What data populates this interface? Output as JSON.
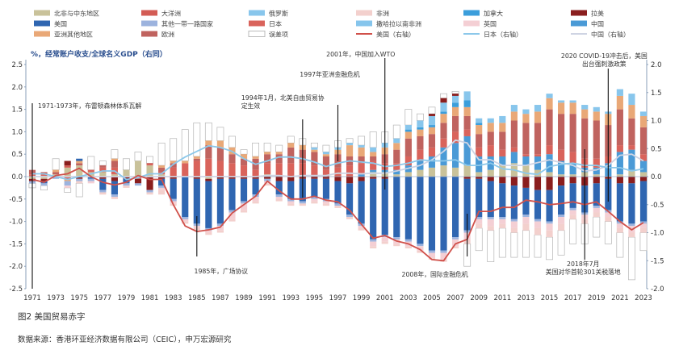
{
  "caption": {
    "title": "图2 美国贸易赤字",
    "source": "数据来源：香港环亚经济数据有限公司（CEIC），申万宏源研究"
  },
  "chart_data": {
    "type": "bar",
    "stacked": true,
    "subtitle": "%，经常账户收支/全球名义GDP（右同）",
    "ylim_left": [
      -2.5,
      2.5
    ],
    "ylim_right": [
      -2.0,
      2.0
    ],
    "yticks_left": [
      "2.5",
      "2.0",
      "1.5",
      "1.0",
      "0.5",
      "0.0",
      "-0.5",
      "-1.0",
      "-1.5",
      "-2.0",
      "-2.5"
    ],
    "yticks_right": [
      "2.0",
      "1.5",
      "1.0",
      "0.5",
      "0.0",
      "-0.5",
      "-1.0",
      "-1.5",
      "-2.0"
    ],
    "categories": [
      1971,
      1972,
      1973,
      1974,
      1975,
      1976,
      1977,
      1978,
      1979,
      1980,
      1981,
      1982,
      1983,
      1984,
      1985,
      1986,
      1987,
      1988,
      1989,
      1990,
      1991,
      1992,
      1993,
      1994,
      1995,
      1996,
      1997,
      1998,
      1999,
      2000,
      2001,
      2002,
      2003,
      2004,
      2005,
      2006,
      2007,
      2008,
      2009,
      2010,
      2011,
      2012,
      2013,
      2014,
      2015,
      2016,
      2017,
      2018,
      2019,
      2020,
      2021,
      2022,
      2023
    ],
    "xtick_labels": [
      "1971",
      "1973",
      "1975",
      "1977",
      "1979",
      "1981",
      "1983",
      "1985",
      "1987",
      "1989",
      "1991",
      "1993",
      "1995",
      "1997",
      "1999",
      "2001",
      "2003",
      "2005",
      "2007",
      "2009",
      "2011",
      "2013",
      "2015",
      "2017",
      "2019",
      "2021",
      "2023"
    ],
    "legend": [
      {
        "name": "北非与中东地区",
        "color": "#c9c29a",
        "kind": "bar"
      },
      {
        "name": "大洋洲",
        "color": "#d35c55",
        "kind": "bar"
      },
      {
        "name": "俄罗斯",
        "color": "#88c6ec",
        "kind": "bar"
      },
      {
        "name": "非洲",
        "color": "#f3d0cd",
        "kind": "bar"
      },
      {
        "name": "加拿大",
        "color": "#3b9edb",
        "kind": "bar"
      },
      {
        "name": "拉美",
        "color": "#8a1e1e",
        "kind": "bar"
      },
      {
        "name": "美国",
        "color": "#2f66b1",
        "kind": "bar"
      },
      {
        "name": "其他一带一路国家",
        "color": "#9cb3de",
        "kind": "bar"
      },
      {
        "name": "日本",
        "color": "#d9635b",
        "kind": "bar"
      },
      {
        "name": "撒哈拉以南非洲",
        "color": "#86c5ec",
        "kind": "bar"
      },
      {
        "name": "英国",
        "color": "#f4cfd4",
        "kind": "bar"
      },
      {
        "name": "中国",
        "color": "#4a9ad6",
        "kind": "bar"
      },
      {
        "name": "亚洲其他地区",
        "color": "#e9a877",
        "kind": "bar"
      },
      {
        "name": "欧洲",
        "color": "#c0635f",
        "kind": "bar"
      },
      {
        "name": "误差项",
        "color": "#ffffff",
        "kind": "outline"
      },
      {
        "name": "美国（右轴）",
        "color": "#d0504a",
        "kind": "line"
      },
      {
        "name": "日本（右轴）",
        "color": "#8cc8ea",
        "kind": "line"
      },
      {
        "name": "中国（右轴）",
        "color": "#cfd4e3",
        "kind": "line"
      }
    ],
    "series_bars": [
      {
        "name": "北非与中东地区",
        "values": [
          -0.05,
          -0.05,
          0.05,
          0.2,
          0.25,
          0.1,
          0.1,
          0.05,
          0.15,
          0.35,
          0.25,
          0.05,
          0,
          0,
          0,
          -0.05,
          0,
          0,
          0,
          0,
          0.05,
          0,
          0,
          0,
          0,
          0,
          0,
          0,
          0,
          0.1,
          0.1,
          0.05,
          0.1,
          0.15,
          0.2,
          0.25,
          0.2,
          0.25,
          0.1,
          0.15,
          0.25,
          0.3,
          0.25,
          0.15,
          0.1,
          0.05,
          0.05,
          0.1,
          0.05,
          0,
          0.05,
          0.15,
          0.1
        ]
      },
      {
        "name": "中国",
        "values": [
          0,
          0,
          0,
          0,
          0,
          0,
          0,
          0,
          0,
          0,
          0,
          0,
          0,
          0,
          0,
          0,
          0,
          0,
          0,
          0,
          0,
          0,
          0,
          0,
          0,
          0,
          0,
          0,
          0.05,
          0.05,
          0.05,
          0.1,
          0.15,
          0.2,
          0.25,
          0.4,
          0.55,
          0.65,
          0.35,
          0.3,
          0.2,
          0.25,
          0.2,
          0.3,
          0.4,
          0.3,
          0.25,
          0.1,
          0.15,
          0.3,
          0.5,
          0.45,
          0.25
        ]
      },
      {
        "name": "日本",
        "values": [
          0.05,
          0.05,
          0,
          -0.05,
          0,
          0.05,
          0.1,
          0.15,
          0,
          -0.05,
          0.05,
          0.05,
          0.2,
          0.3,
          0.35,
          0.4,
          0.35,
          0.3,
          0.25,
          0.15,
          0.25,
          0.3,
          0.3,
          0.3,
          0.25,
          0.15,
          0.2,
          0.25,
          0.25,
          0.2,
          0.15,
          0.15,
          0.2,
          0.25,
          0.2,
          0.2,
          0.25,
          0.15,
          0.2,
          0.25,
          0.15,
          0.1,
          0.05,
          0.05,
          0.2,
          0.25,
          0.25,
          0.2,
          0.2,
          0.15,
          0.15,
          0.1,
          0.15
        ]
      },
      {
        "name": "欧洲",
        "values": [
          0.1,
          0.05,
          0.05,
          0,
          0.05,
          0,
          0.05,
          0.15,
          0,
          0,
          0,
          0.1,
          0.1,
          0,
          0.05,
          0.3,
          0.3,
          0.2,
          0.15,
          0.25,
          0.2,
          0.2,
          0.35,
          0.3,
          0.3,
          0.3,
          0.3,
          0.2,
          0.15,
          0.1,
          0.2,
          0.3,
          0.4,
          0.3,
          0.3,
          0.35,
          0.35,
          0.3,
          0.3,
          0.3,
          0.4,
          0.6,
          0.7,
          0.7,
          0.8,
          0.8,
          0.85,
          0.9,
          0.85,
          0.7,
          0.8,
          0.6,
          0.6
        ]
      },
      {
        "name": "亚洲其他地区",
        "values": [
          0,
          0,
          0.05,
          -0.05,
          0.05,
          0,
          0,
          0.05,
          0,
          0,
          0,
          0.05,
          0.05,
          0.05,
          0.05,
          0.1,
          0.15,
          0.15,
          0.1,
          0.05,
          0.05,
          0.05,
          0.1,
          0.1,
          0.05,
          0.05,
          0.1,
          0.25,
          0.2,
          0.1,
          0.15,
          0.15,
          0.15,
          0.15,
          0.15,
          0.2,
          0.2,
          0.2,
          0.2,
          0.2,
          0.2,
          0.2,
          0.2,
          0.25,
          0.25,
          0.25,
          0.25,
          0.2,
          0.2,
          0.25,
          0.3,
          0.3,
          0.25
        ]
      },
      {
        "name": "加拿大",
        "values": [
          0,
          0,
          0,
          0,
          0,
          0,
          0,
          0,
          0,
          0,
          0,
          0,
          0,
          0,
          0,
          0,
          0,
          0,
          0,
          0,
          0,
          0,
          0,
          0,
          0,
          0,
          0,
          0,
          0,
          0,
          0,
          0,
          0.05,
          0.05,
          0.05,
          0.05,
          0.1,
          0.15,
          0.05,
          0,
          0,
          0,
          0,
          0,
          0,
          0,
          0,
          0,
          0,
          0,
          0,
          0,
          0
        ]
      },
      {
        "name": "俄罗斯",
        "values": [
          0,
          0,
          0,
          0,
          0,
          0,
          0,
          0,
          0,
          0,
          0,
          0,
          0,
          0,
          0,
          0,
          0,
          0,
          0,
          0,
          0,
          0,
          0,
          0,
          0.05,
          0.05,
          0.05,
          0.05,
          0.05,
          0.1,
          0.1,
          0.1,
          0.1,
          0.15,
          0.2,
          0.2,
          0.15,
          0.2,
          0.1,
          0.1,
          0.15,
          0.15,
          0.1,
          0.15,
          0.1,
          0.05,
          0.05,
          0.1,
          0.1,
          0.05,
          0.15,
          0.25,
          0.1
        ]
      },
      {
        "name": "大洋洲",
        "values": [
          0,
          0,
          0,
          0.05,
          0,
          0,
          0,
          0,
          0,
          0,
          0,
          0,
          0,
          0,
          0,
          0,
          0,
          0,
          0,
          0,
          0,
          0,
          0,
          0,
          0,
          0,
          0,
          0,
          0,
          0,
          0,
          0,
          0,
          0,
          0,
          0,
          0,
          0,
          0,
          0,
          0,
          0,
          0,
          0,
          0,
          0,
          0,
          0,
          0,
          0,
          0,
          0,
          0
        ]
      },
      {
        "name": "拉美",
        "values": [
          -0.05,
          -0.05,
          0,
          0.1,
          -0.05,
          0,
          -0.05,
          -0.1,
          -0.05,
          -0.1,
          -0.3,
          -0.05,
          -0.05,
          0,
          -0.05,
          -0.05,
          -0.05,
          -0.05,
          -0.05,
          -0.05,
          -0.05,
          -0.1,
          -0.1,
          -0.05,
          -0.05,
          -0.05,
          -0.1,
          -0.15,
          -0.1,
          -0.05,
          -0.05,
          0,
          0,
          0,
          0.05,
          0.1,
          0.05,
          -0.05,
          -0.05,
          -0.1,
          -0.15,
          -0.2,
          -0.25,
          -0.3,
          -0.3,
          -0.2,
          -0.15,
          -0.2,
          -0.15,
          -0.05,
          -0.15,
          -0.15,
          -0.1
        ]
      },
      {
        "name": "美国",
        "values": [
          0,
          -0.05,
          0,
          0,
          0.05,
          -0.05,
          -0.25,
          -0.3,
          -0.1,
          0,
          0,
          -0.15,
          -0.45,
          -0.9,
          -1.0,
          -1.05,
          -1.0,
          -0.7,
          -0.5,
          -0.35,
          0,
          -0.3,
          -0.4,
          -0.5,
          -0.4,
          -0.45,
          -0.5,
          -0.7,
          -0.95,
          -1.35,
          -1.25,
          -1.35,
          -1.4,
          -1.5,
          -1.65,
          -1.65,
          -1.35,
          -1.15,
          -0.85,
          -0.8,
          -0.75,
          -0.75,
          -0.6,
          -0.65,
          -0.7,
          -0.65,
          -0.55,
          -0.6,
          -0.5,
          -0.7,
          -0.85,
          -0.9,
          -0.9
        ]
      },
      {
        "name": "其他一带一路国家",
        "values": [
          -0.05,
          -0.05,
          -0.05,
          -0.1,
          -0.05,
          -0.05,
          -0.05,
          -0.05,
          -0.05,
          -0.05,
          -0.05,
          -0.05,
          -0.05,
          -0.05,
          -0.05,
          -0.05,
          -0.05,
          -0.05,
          -0.05,
          -0.05,
          -0.05,
          -0.05,
          -0.05,
          -0.05,
          -0.05,
          -0.05,
          -0.05,
          -0.05,
          -0.05,
          -0.05,
          -0.05,
          -0.05,
          -0.05,
          -0.05,
          -0.05,
          -0.05,
          -0.05,
          -0.05,
          -0.05,
          -0.05,
          -0.05,
          -0.05,
          -0.05,
          -0.05,
          -0.05,
          -0.05,
          -0.05,
          -0.05,
          -0.05,
          -0.05,
          -0.05,
          -0.05,
          -0.05
        ]
      },
      {
        "name": "英国",
        "values": [
          0,
          0,
          0,
          -0.05,
          0,
          -0.05,
          0,
          0,
          0,
          0,
          0,
          -0.05,
          -0.05,
          -0.05,
          -0.05,
          -0.05,
          -0.1,
          -0.15,
          -0.15,
          -0.1,
          -0.05,
          -0.05,
          -0.05,
          0,
          -0.05,
          -0.05,
          0,
          0,
          -0.05,
          -0.1,
          -0.1,
          -0.1,
          -0.1,
          -0.1,
          -0.1,
          -0.15,
          -0.15,
          -0.15,
          -0.1,
          -0.15,
          -0.1,
          -0.15,
          -0.15,
          -0.15,
          -0.15,
          -0.15,
          -0.1,
          -0.1,
          -0.1,
          -0.1,
          -0.1,
          -0.15,
          -0.1
        ]
      },
      {
        "name": "非洲",
        "values": [
          0,
          0,
          0,
          0,
          -0.05,
          0,
          -0.05,
          -0.05,
          -0.05,
          0,
          -0.05,
          -0.1,
          -0.05,
          -0.05,
          -0.05,
          -0.05,
          -0.05,
          -0.05,
          -0.05,
          -0.05,
          -0.05,
          -0.05,
          -0.05,
          -0.05,
          -0.05,
          -0.05,
          -0.05,
          -0.05,
          -0.05,
          -0.05,
          -0.05,
          -0.05,
          -0.05,
          -0.05,
          -0.05,
          -0.05,
          -0.05,
          -0.1,
          -0.1,
          -0.1,
          -0.1,
          -0.1,
          -0.15,
          -0.15,
          -0.15,
          -0.15,
          -0.1,
          -0.1,
          -0.1,
          -0.1,
          -0.1,
          -0.1,
          -0.1
        ]
      },
      {
        "name": "撒哈拉以南非洲",
        "values": [
          0,
          0,
          0,
          0,
          0,
          0,
          0,
          0,
          0,
          0,
          0,
          0,
          0,
          0,
          0,
          0,
          0,
          0,
          0,
          0,
          0,
          0,
          0,
          0,
          0,
          0,
          0,
          0,
          0,
          0,
          0,
          0,
          0,
          0,
          0,
          0,
          0,
          0,
          0,
          0,
          0,
          0,
          0,
          0,
          0,
          0,
          0,
          0,
          0,
          0,
          0,
          0,
          0
        ]
      }
    ],
    "error_term": [
      -0.1,
      -0.1,
      0.25,
      -0.1,
      -0.3,
      0.3,
      0.1,
      0.2,
      0.25,
      0.2,
      0.15,
      0.5,
      0.5,
      0.7,
      0.75,
      0.4,
      0.3,
      0.25,
      0.1,
      0.3,
      0.2,
      0.15,
      0.15,
      0.15,
      0.1,
      0.15,
      0.15,
      0.1,
      0.2,
      0.35,
      0.25,
      0.3,
      0.35,
      0.15,
      0.15,
      0.1,
      0.05,
      -0.5,
      -0.5,
      -0.7,
      -0.65,
      -0.55,
      -0.6,
      -0.5,
      -0.5,
      -0.55,
      -0.55,
      -0.45,
      -0.45,
      -0.5,
      -0.55,
      -0.95,
      -0.4
    ],
    "series_lines": [
      {
        "name": "美国（右轴）",
        "axis": "right",
        "values": [
          -0.05,
          -0.1,
          0.02,
          0.05,
          0.15,
          0.0,
          -0.1,
          -0.15,
          -0.1,
          0.02,
          -0.05,
          -0.05,
          -0.5,
          -0.88,
          -0.98,
          -0.95,
          -0.9,
          -0.65,
          -0.5,
          -0.35,
          -0.08,
          -0.25,
          -0.4,
          -0.4,
          -0.35,
          -0.42,
          -0.45,
          -0.6,
          -0.85,
          -1.1,
          -1.05,
          -1.15,
          -1.2,
          -1.3,
          -1.48,
          -1.5,
          -1.2,
          -1.12,
          -0.62,
          -0.62,
          -0.55,
          -0.55,
          -0.42,
          -0.45,
          -0.5,
          -0.48,
          -0.45,
          -0.5,
          -0.45,
          -0.62,
          -0.8,
          -0.95,
          -0.82
        ]
      },
      {
        "name": "日本（右轴）",
        "axis": "right",
        "values": [
          0.05,
          0.05,
          0.0,
          -0.05,
          0.0,
          0.05,
          0.1,
          0.1,
          -0.05,
          -0.02,
          0.05,
          0.05,
          0.22,
          0.35,
          0.45,
          0.55,
          0.52,
          0.45,
          0.32,
          0.22,
          0.28,
          0.35,
          0.35,
          0.32,
          0.26,
          0.18,
          0.24,
          0.28,
          0.26,
          0.24,
          0.18,
          0.2,
          0.24,
          0.3,
          0.28,
          0.28,
          0.3,
          0.2,
          0.2,
          0.24,
          0.14,
          0.12,
          0.06,
          0.04,
          0.18,
          0.22,
          0.24,
          0.2,
          0.2,
          0.16,
          0.16,
          0.1,
          0.14
        ]
      },
      {
        "name": "中国（右轴）",
        "axis": "right",
        "values": [
          0,
          0,
          0,
          0,
          0,
          0,
          0,
          0,
          0,
          0,
          0,
          0,
          0,
          0,
          0,
          0,
          0,
          0,
          0,
          0,
          0.02,
          0.02,
          0,
          0.02,
          0.02,
          0.02,
          0.06,
          0.06,
          0.05,
          0.06,
          0.06,
          0.1,
          0.15,
          0.2,
          0.3,
          0.45,
          0.65,
          0.6,
          0.3,
          0.3,
          0.2,
          0.2,
          0.2,
          0.25,
          0.3,
          0.25,
          0.2,
          0.1,
          0.12,
          0.2,
          0.38,
          0.4,
          0.28
        ]
      }
    ],
    "annotations": [
      {
        "text": "1971-1973年，布雷顿森林体系瓦解",
        "year": 1971
      },
      {
        "text": "1985年，广场协议",
        "year": 1985
      },
      {
        "text": "1994年1月，北美自由贸易协",
        "text2": "定生效",
        "year": 1994
      },
      {
        "text": "1997年亚洲金融危机",
        "year": 1997
      },
      {
        "text": "2001年，中国加入WTO",
        "year": 2001
      },
      {
        "text": "2008年，国际金融危机",
        "year": 2008
      },
      {
        "text": "2018年7月",
        "text2": "美国对华首轮301关税落地",
        "year": 2018
      },
      {
        "text": "2020 COVID-19冲击后，美国",
        "text2": "出台强刺激政策",
        "year": 2020
      }
    ]
  }
}
